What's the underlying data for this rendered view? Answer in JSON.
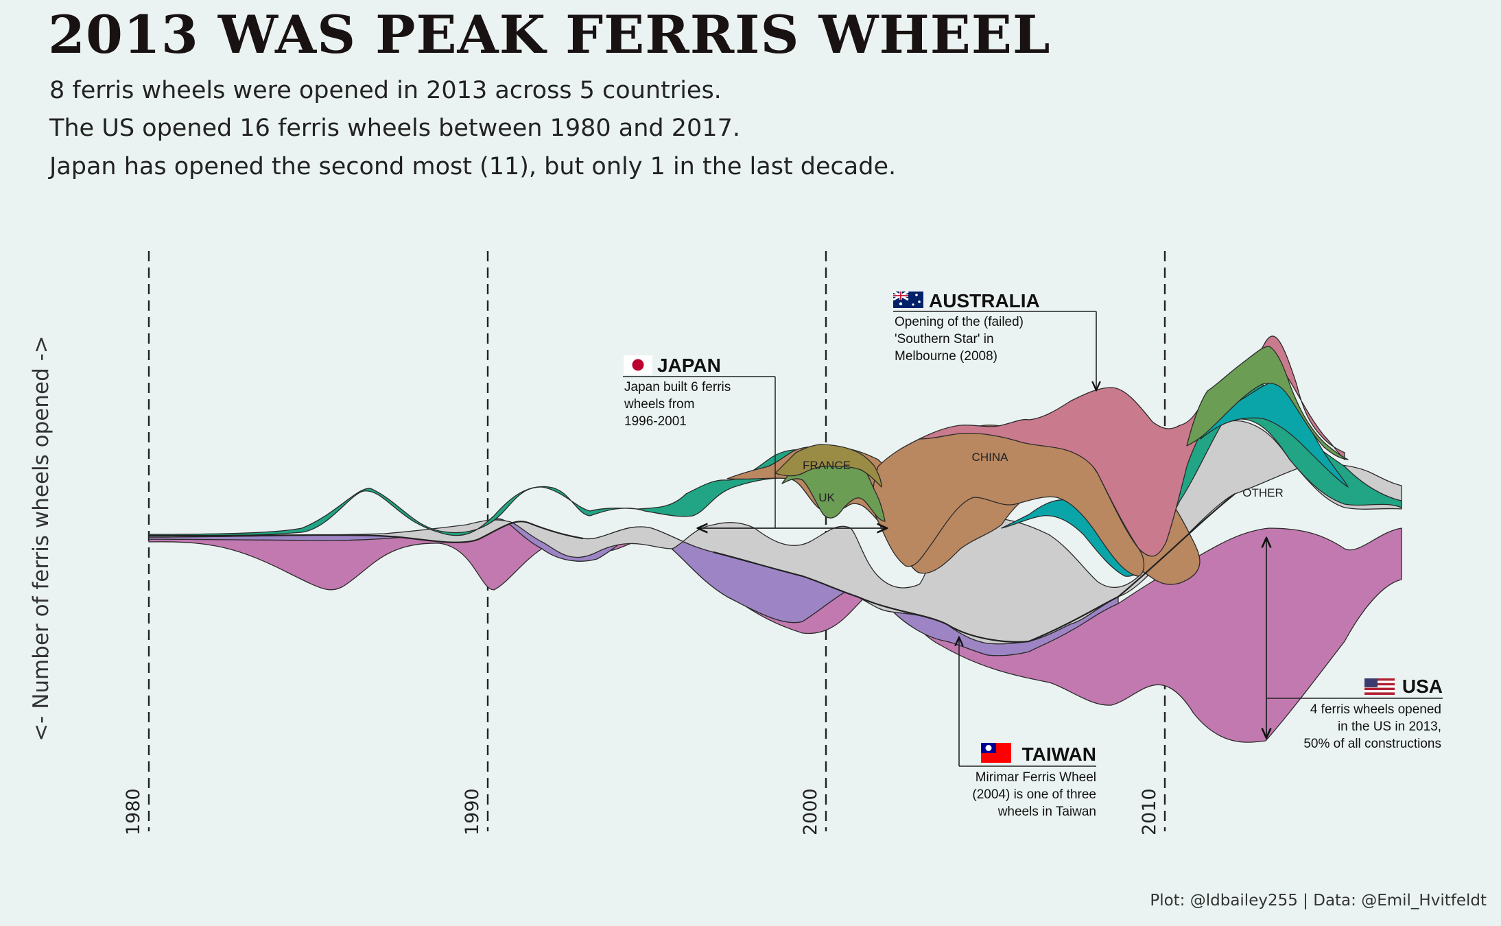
{
  "title": "2013 WAS PEAK FERRIS WHEEL",
  "subtitle": [
    "8 ferris wheels were opened in 2013 across 5 countries.",
    "The US opened 16 ferris wheels between 1980 and 2017.",
    "Japan has opened the second most (11), but only 1 in the last decade."
  ],
  "caption": "Plot: @ldbailey255 | Data: @Emil_Hvitfeldt",
  "colors": {
    "background": "#eaf3f1",
    "usa": "#c279b0",
    "taiwan": "#9d85c5",
    "other": "#cdcdcd",
    "japan": "#21a584",
    "teal": "#0aa5a8",
    "uk": "#6b9d54",
    "france": "#9b8c45",
    "china": "#b98760",
    "australia": "#c97a8c",
    "misc": "#b08a57"
  },
  "chart_data": {
    "type": "area",
    "subtype": "streamgraph",
    "x_ticks": [
      "1980",
      "1990",
      "2000",
      "2010"
    ],
    "xlim": [
      1980,
      2017
    ],
    "ylabel": "<- Number of ferris wheels opened ->",
    "stream_labels": [
      "FRANCE",
      "UK",
      "CHINA",
      "OTHER"
    ],
    "annotations": [
      {
        "country": "JAPAN",
        "text": [
          "Japan built 6 ferris",
          "wheels from",
          "1996-2001"
        ],
        "range": [
          1996,
          2001
        ]
      },
      {
        "country": "AUSTRALIA",
        "text": [
          "Opening of the (failed)",
          "'Southern Star' in",
          "Melbourne (2008)"
        ],
        "year": 2008
      },
      {
        "country": "TAIWAN",
        "text": [
          "Mirimar Ferris Wheel",
          "(2004) is one of three",
          "wheels in Taiwan"
        ],
        "year": 2004
      },
      {
        "country": "USA",
        "text": [
          "4 ferris wheels opened",
          "in the US in 2013,",
          "50% of all constructions"
        ],
        "year": 2013
      }
    ]
  }
}
